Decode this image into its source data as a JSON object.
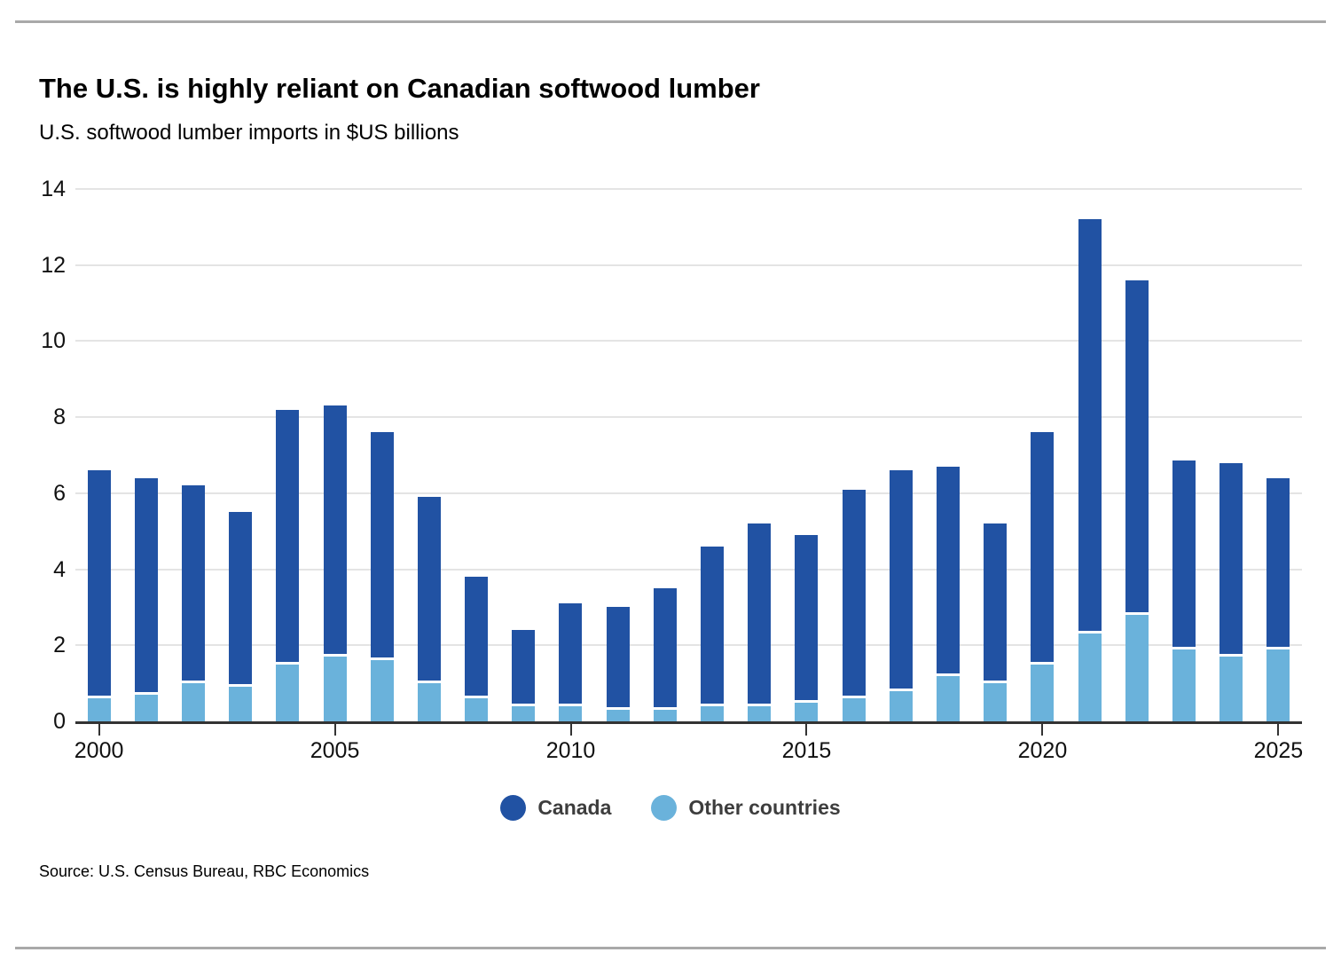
{
  "header": {
    "title": "The U.S. is highly reliant on Canadian softwood lumber",
    "subtitle": "U.S. softwood lumber imports in $US billions"
  },
  "chart_data": {
    "type": "bar",
    "stacked": true,
    "title": "The U.S. is highly reliant on Canadian softwood lumber",
    "subtitle": "U.S. softwood lumber imports in $US billions",
    "unit": "$US billions",
    "categories": [
      2000,
      2001,
      2002,
      2003,
      2004,
      2005,
      2006,
      2007,
      2008,
      2009,
      2010,
      2011,
      2012,
      2013,
      2014,
      2015,
      2016,
      2017,
      2018,
      2019,
      2020,
      2021,
      2022,
      2023,
      2024,
      2025
    ],
    "series": [
      {
        "name": "Canada",
        "color": "#2152a3",
        "values": [
          6.0,
          5.7,
          5.2,
          4.6,
          6.7,
          6.6,
          6.0,
          4.9,
          3.2,
          2.0,
          2.7,
          2.7,
          3.2,
          4.2,
          4.8,
          4.4,
          5.5,
          5.8,
          5.5,
          4.2,
          6.1,
          10.9,
          8.8,
          4.95,
          5.1,
          4.5
        ]
      },
      {
        "name": "Other countries",
        "color": "#6ab2db",
        "values": [
          0.6,
          0.7,
          1.0,
          0.9,
          1.5,
          1.7,
          1.6,
          1.0,
          0.6,
          0.4,
          0.4,
          0.3,
          0.3,
          0.4,
          0.4,
          0.5,
          0.6,
          0.8,
          1.2,
          1.0,
          1.5,
          2.3,
          2.8,
          1.9,
          1.7,
          1.9
        ]
      }
    ],
    "totals": [
      6.6,
      6.4,
      6.2,
      5.5,
      8.2,
      8.3,
      7.6,
      5.9,
      3.8,
      2.4,
      3.1,
      3.0,
      3.5,
      4.6,
      5.2,
      4.9,
      6.1,
      6.6,
      6.7,
      5.2,
      7.6,
      13.2,
      11.6,
      6.85,
      6.8,
      6.4
    ],
    "ylim": [
      0,
      14
    ],
    "yticks": [
      0,
      2,
      4,
      6,
      8,
      10,
      12,
      14
    ],
    "xticks": [
      2000,
      2005,
      2010,
      2015,
      2020,
      2025
    ],
    "grid": "horizontal",
    "legend_position": "bottom",
    "axis_color": "#333333",
    "gridline_color": "#e4e4e4"
  },
  "legend": {
    "items": [
      {
        "label": "Canada",
        "color": "#2152a3"
      },
      {
        "label": "Other countries",
        "color": "#6ab2db"
      }
    ]
  },
  "footer": {
    "source": "Source: U.S. Census Bureau, RBC Economics"
  }
}
